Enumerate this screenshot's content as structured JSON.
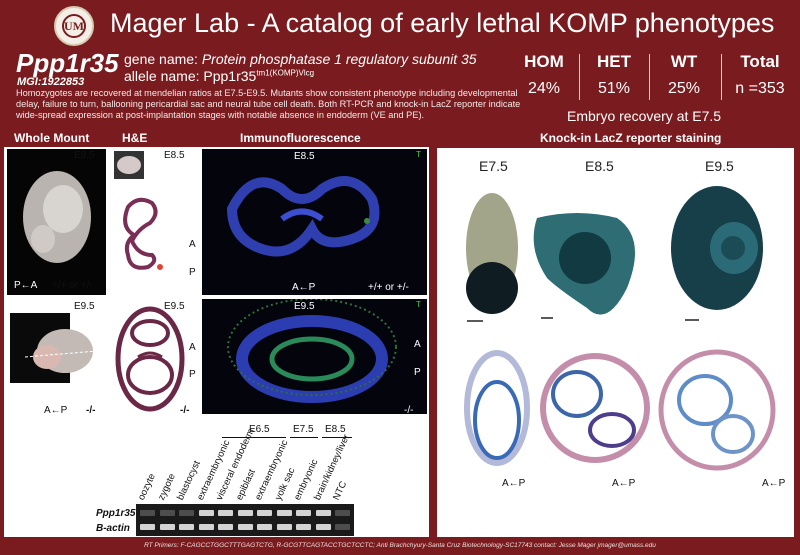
{
  "header": {
    "title": "Mager Lab - A catalog of early lethal KOMP phenotypes"
  },
  "gene": {
    "symbol": "Ppp1r35",
    "mgi": "MGI:1922853",
    "gene_name_label": "gene name: ",
    "gene_name_value": "Protein phosphatase 1 regulatory subunit 35",
    "allele_label": "allele name: ",
    "allele_base": "Ppp1r35",
    "allele_sup": "tm1(KOMP)Vlcg",
    "description": "Homozygotes are recovered at mendelian ratios at E7.5-E9.5.  Mutants show consistent phenotype including developmental delay, failure to turn, ballooning pericardial sac and neural tube cell death. Both RT-PCR and knock-in LacZ reporter indicate wide-spread expression at post-implantation stages with notable absence in endoderm (VE and PE)."
  },
  "stats": {
    "hom_label": "HOM",
    "hom_value": "24%",
    "het_label": "HET",
    "het_value": "51%",
    "wt_label": "WT",
    "wt_value": "25%",
    "total_label": "Total",
    "total_value": "n =353",
    "recovery": "Embryo recovery at E7.5"
  },
  "sections": {
    "whole_mount": "Whole Mount",
    "he": "H&E",
    "immuno": "Immunofluorescence",
    "lacz": "Knock-in LacZ reporter staining"
  },
  "left_panel": {
    "wm_top_stage": "E9.5",
    "wm_top_axis": "P←A",
    "wm_top_genotype": "+/+ or +/-",
    "wm_bot_stage": "E9.5",
    "wm_bot_axis": "A←P",
    "wm_bot_genotype": "-/-",
    "he_top_stage": "E8.5",
    "he_top_axis_a": "A",
    "he_top_axis_p": "P",
    "he_bot_stage": "E9.5",
    "he_bot_axis_a": "A",
    "he_bot_axis_p": "P",
    "he_bot_genotype": "-/-",
    "if_top_stage": "E8.5",
    "if_top_axis": "A←P",
    "if_top_genotype": "+/+ or +/-",
    "if_top_t": "T",
    "if_bot_stage": "E9.5",
    "if_bot_axis_a": "A",
    "if_bot_axis_p": "P",
    "if_bot_genotype": "-/-",
    "if_bot_t": "T"
  },
  "gel": {
    "stage_headers": [
      "E6.5",
      "E7.5",
      "E8.5"
    ],
    "lanes": [
      "oozyte",
      "zygote",
      "blastocyst",
      "extraembryonic",
      "visceral endoderm",
      "epiblast",
      "extraembryonic",
      "yolk sac",
      "embryonic",
      "brain/kidney/liver",
      "NTC"
    ],
    "rows": [
      "Ppp1r35",
      "B-actin"
    ]
  },
  "lacz": {
    "stages": [
      "E7.5",
      "E8.5",
      "E9.5"
    ],
    "axis_1": "A←P",
    "axis_2": "A←P",
    "axis_3": "A←P"
  },
  "footer": "RT Primers: F-CAGCCTGGCTTTGAGTCTG, R-GCGTTCAGTACCTGCTCCTC; Anti Brachchyury-Santa Cruz Biotechnology-SC17743 contact: Jesse Mager jmager@umass.edu",
  "colors": {
    "background": "#7a1c1f",
    "lacz_blue": "#1f4a57",
    "he_purple": "#6a2846"
  }
}
